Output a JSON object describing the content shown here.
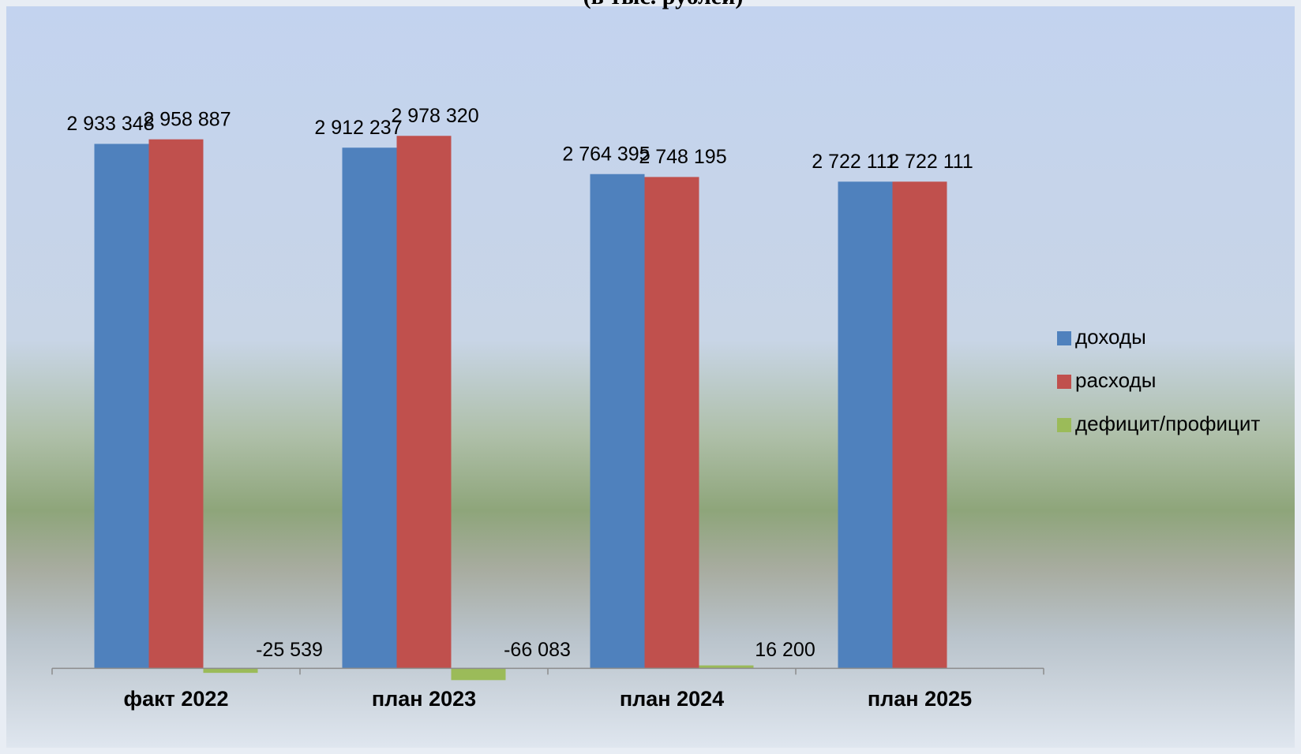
{
  "chart_data": {
    "type": "bar",
    "title": "(в тыс. рублей)",
    "categories": [
      "факт 2022",
      "план 2023",
      "план 2024",
      "план 2025"
    ],
    "series": [
      {
        "name": "доходы",
        "color": "#4f81bd",
        "values": [
          2933348,
          2912237,
          2764395,
          2722111
        ],
        "value_labels": [
          "2 933 348",
          "2 912 237",
          "2 764 395",
          "2 722 111"
        ]
      },
      {
        "name": "расходы",
        "color": "#c0504d",
        "values": [
          2958887,
          2978320,
          2748195,
          2722111
        ],
        "value_labels": [
          "2 958 887",
          "2 978 320",
          "2 748 195",
          "2 722 111"
        ]
      },
      {
        "name": "дефицит/профицит",
        "color": "#9bbb59",
        "values": [
          -25539,
          -66083,
          16200,
          0
        ],
        "value_labels": [
          "-25 539",
          "-66 083",
          "16 200"
        ]
      }
    ],
    "ylim": [
      -100000,
      3500000
    ],
    "legend": "right"
  }
}
